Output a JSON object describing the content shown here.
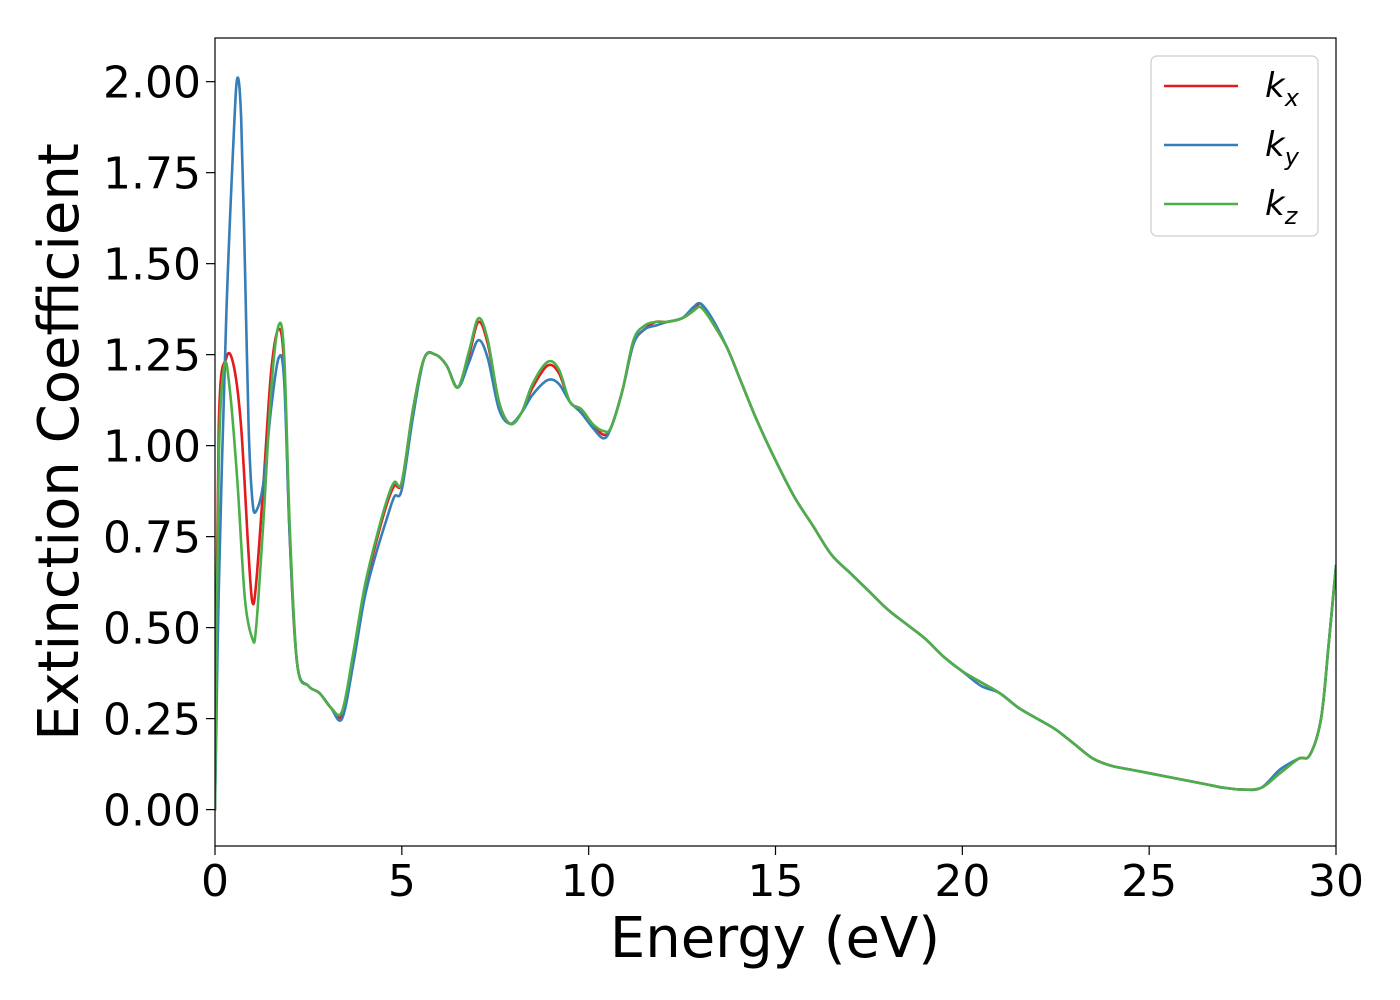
{
  "chart_data": {
    "type": "line",
    "title": "",
    "xlabel": "Energy (eV)",
    "ylabel": "Extinction Coefficient",
    "xlim": [
      0,
      30
    ],
    "ylim": [
      -0.1,
      2.12
    ],
    "xticks": [
      0,
      5,
      10,
      15,
      20,
      25,
      30
    ],
    "xtick_labels": [
      "0",
      "5",
      "10",
      "15",
      "20",
      "25",
      "30"
    ],
    "yticks": [
      0,
      0.25,
      0.5,
      0.75,
      1.0,
      1.25,
      1.5,
      1.75,
      2.0
    ],
    "ytick_labels": [
      "0.00",
      "0.25",
      "0.50",
      "0.75",
      "1.00",
      "1.25",
      "1.50",
      "1.75",
      "2.00"
    ],
    "grid": false,
    "legend_position": "top-right",
    "series": [
      {
        "name": "k",
        "subscript": "x",
        "color": "#e41a1c",
        "x": [
          0,
          0.1,
          0.3,
          0.5,
          0.7,
          0.9,
          1.0,
          1.1,
          1.3,
          1.5,
          1.7,
          1.85,
          2.0,
          2.2,
          2.5,
          2.8,
          3.1,
          3.4,
          3.7,
          4.0,
          4.3,
          4.6,
          4.8,
          5.0,
          5.3,
          5.6,
          5.9,
          6.2,
          6.5,
          6.8,
          7.05,
          7.3,
          7.6,
          7.9,
          8.2,
          8.5,
          8.9,
          9.2,
          9.5,
          9.8,
          10.1,
          10.4,
          10.6,
          10.9,
          11.2,
          11.5,
          11.8,
          12.1,
          12.5,
          12.8,
          13.0,
          13.3,
          13.7,
          14.1,
          14.5,
          15.0,
          15.5,
          16.0,
          16.5,
          17.0,
          17.5,
          18.0,
          18.5,
          19.0,
          19.5,
          20.0,
          20.5,
          21.0,
          21.5,
          22.0,
          22.5,
          23.0,
          23.5,
          24.0,
          24.5,
          25.0,
          25.5,
          26.0,
          26.5,
          27.0,
          27.5,
          28.0,
          28.5,
          29.0,
          29.3,
          29.6,
          29.8,
          30.0
        ],
        "values": [
          0.0,
          1.05,
          1.24,
          1.22,
          1.05,
          0.7,
          0.57,
          0.62,
          0.9,
          1.2,
          1.32,
          1.22,
          0.75,
          0.4,
          0.34,
          0.32,
          0.28,
          0.26,
          0.42,
          0.6,
          0.73,
          0.84,
          0.89,
          0.9,
          1.1,
          1.24,
          1.25,
          1.22,
          1.16,
          1.25,
          1.34,
          1.28,
          1.12,
          1.06,
          1.09,
          1.16,
          1.22,
          1.2,
          1.12,
          1.1,
          1.06,
          1.03,
          1.05,
          1.15,
          1.28,
          1.32,
          1.34,
          1.34,
          1.35,
          1.37,
          1.39,
          1.34,
          1.27,
          1.17,
          1.07,
          0.96,
          0.86,
          0.78,
          0.7,
          0.65,
          0.6,
          0.55,
          0.51,
          0.47,
          0.42,
          0.38,
          0.35,
          0.32,
          0.28,
          0.25,
          0.22,
          0.18,
          0.14,
          0.12,
          0.11,
          0.1,
          0.09,
          0.08,
          0.07,
          0.06,
          0.055,
          0.06,
          0.1,
          0.14,
          0.15,
          0.25,
          0.45,
          0.67
        ]
      },
      {
        "name": "k",
        "subscript": "y",
        "color": "#377eb8",
        "x": [
          0,
          0.1,
          0.3,
          0.5,
          0.6,
          0.7,
          0.8,
          0.9,
          1.0,
          1.1,
          1.3,
          1.5,
          1.7,
          1.85,
          2.0,
          2.2,
          2.5,
          2.8,
          3.1,
          3.4,
          3.7,
          4.0,
          4.3,
          4.6,
          4.8,
          5.0,
          5.3,
          5.6,
          5.9,
          6.2,
          6.5,
          6.8,
          7.05,
          7.3,
          7.6,
          7.9,
          8.2,
          8.5,
          8.9,
          9.2,
          9.5,
          9.8,
          10.1,
          10.4,
          10.6,
          10.9,
          11.2,
          11.5,
          11.8,
          12.1,
          12.5,
          12.8,
          13.0,
          13.3,
          13.7,
          14.1,
          14.5,
          15.0,
          15.5,
          16.0,
          16.5,
          17.0,
          17.5,
          18.0,
          18.5,
          19.0,
          19.5,
          20.0,
          20.5,
          21.0,
          21.5,
          22.0,
          22.5,
          23.0,
          23.5,
          24.0,
          24.5,
          25.0,
          25.5,
          26.0,
          26.5,
          27.0,
          27.5,
          28.0,
          28.5,
          29.0,
          29.3,
          29.6,
          29.8,
          30.0
        ],
        "values": [
          0.0,
          0.6,
          1.35,
          1.85,
          2.01,
          1.9,
          1.5,
          1.05,
          0.85,
          0.82,
          0.9,
          1.1,
          1.24,
          1.18,
          0.75,
          0.4,
          0.34,
          0.32,
          0.28,
          0.25,
          0.4,
          0.58,
          0.7,
          0.8,
          0.86,
          0.88,
          1.08,
          1.24,
          1.25,
          1.22,
          1.16,
          1.23,
          1.29,
          1.24,
          1.1,
          1.06,
          1.09,
          1.14,
          1.18,
          1.17,
          1.12,
          1.09,
          1.05,
          1.02,
          1.05,
          1.15,
          1.28,
          1.32,
          1.33,
          1.34,
          1.35,
          1.38,
          1.39,
          1.35,
          1.27,
          1.17,
          1.07,
          0.96,
          0.86,
          0.78,
          0.7,
          0.65,
          0.6,
          0.55,
          0.51,
          0.47,
          0.42,
          0.38,
          0.34,
          0.32,
          0.28,
          0.25,
          0.22,
          0.18,
          0.14,
          0.12,
          0.11,
          0.1,
          0.09,
          0.08,
          0.07,
          0.06,
          0.055,
          0.06,
          0.11,
          0.14,
          0.15,
          0.25,
          0.45,
          0.67
        ]
      },
      {
        "name": "k",
        "subscript": "z",
        "color": "#4daf4a",
        "x": [
          0,
          0.1,
          0.25,
          0.4,
          0.6,
          0.8,
          1.0,
          1.1,
          1.3,
          1.5,
          1.7,
          1.85,
          2.0,
          2.2,
          2.5,
          2.8,
          3.1,
          3.4,
          3.7,
          4.0,
          4.3,
          4.6,
          4.8,
          5.0,
          5.3,
          5.6,
          5.9,
          6.2,
          6.5,
          6.8,
          7.05,
          7.3,
          7.6,
          7.9,
          8.2,
          8.5,
          8.9,
          9.2,
          9.5,
          9.8,
          10.1,
          10.4,
          10.6,
          10.9,
          11.2,
          11.5,
          11.8,
          12.1,
          12.5,
          12.8,
          13.0,
          13.3,
          13.7,
          14.1,
          14.5,
          15.0,
          15.5,
          16.0,
          16.5,
          17.0,
          17.5,
          18.0,
          18.5,
          19.0,
          19.5,
          20.0,
          20.5,
          21.0,
          21.5,
          22.0,
          22.5,
          23.0,
          23.5,
          24.0,
          24.5,
          25.0,
          25.5,
          26.0,
          26.5,
          27.0,
          27.5,
          28.0,
          28.5,
          29.0,
          29.3,
          29.6,
          29.8,
          30.0
        ],
        "values": [
          0.0,
          0.95,
          1.22,
          1.15,
          0.9,
          0.58,
          0.47,
          0.5,
          0.8,
          1.15,
          1.33,
          1.25,
          0.78,
          0.4,
          0.34,
          0.32,
          0.28,
          0.27,
          0.43,
          0.61,
          0.74,
          0.85,
          0.9,
          0.9,
          1.1,
          1.24,
          1.25,
          1.22,
          1.16,
          1.26,
          1.35,
          1.29,
          1.12,
          1.06,
          1.09,
          1.17,
          1.23,
          1.21,
          1.12,
          1.1,
          1.06,
          1.04,
          1.05,
          1.15,
          1.29,
          1.33,
          1.34,
          1.34,
          1.35,
          1.37,
          1.38,
          1.34,
          1.27,
          1.17,
          1.07,
          0.96,
          0.86,
          0.78,
          0.7,
          0.65,
          0.6,
          0.55,
          0.51,
          0.47,
          0.42,
          0.38,
          0.35,
          0.32,
          0.28,
          0.25,
          0.22,
          0.18,
          0.14,
          0.12,
          0.11,
          0.1,
          0.09,
          0.08,
          0.07,
          0.06,
          0.055,
          0.06,
          0.1,
          0.14,
          0.15,
          0.25,
          0.45,
          0.67
        ]
      }
    ]
  }
}
